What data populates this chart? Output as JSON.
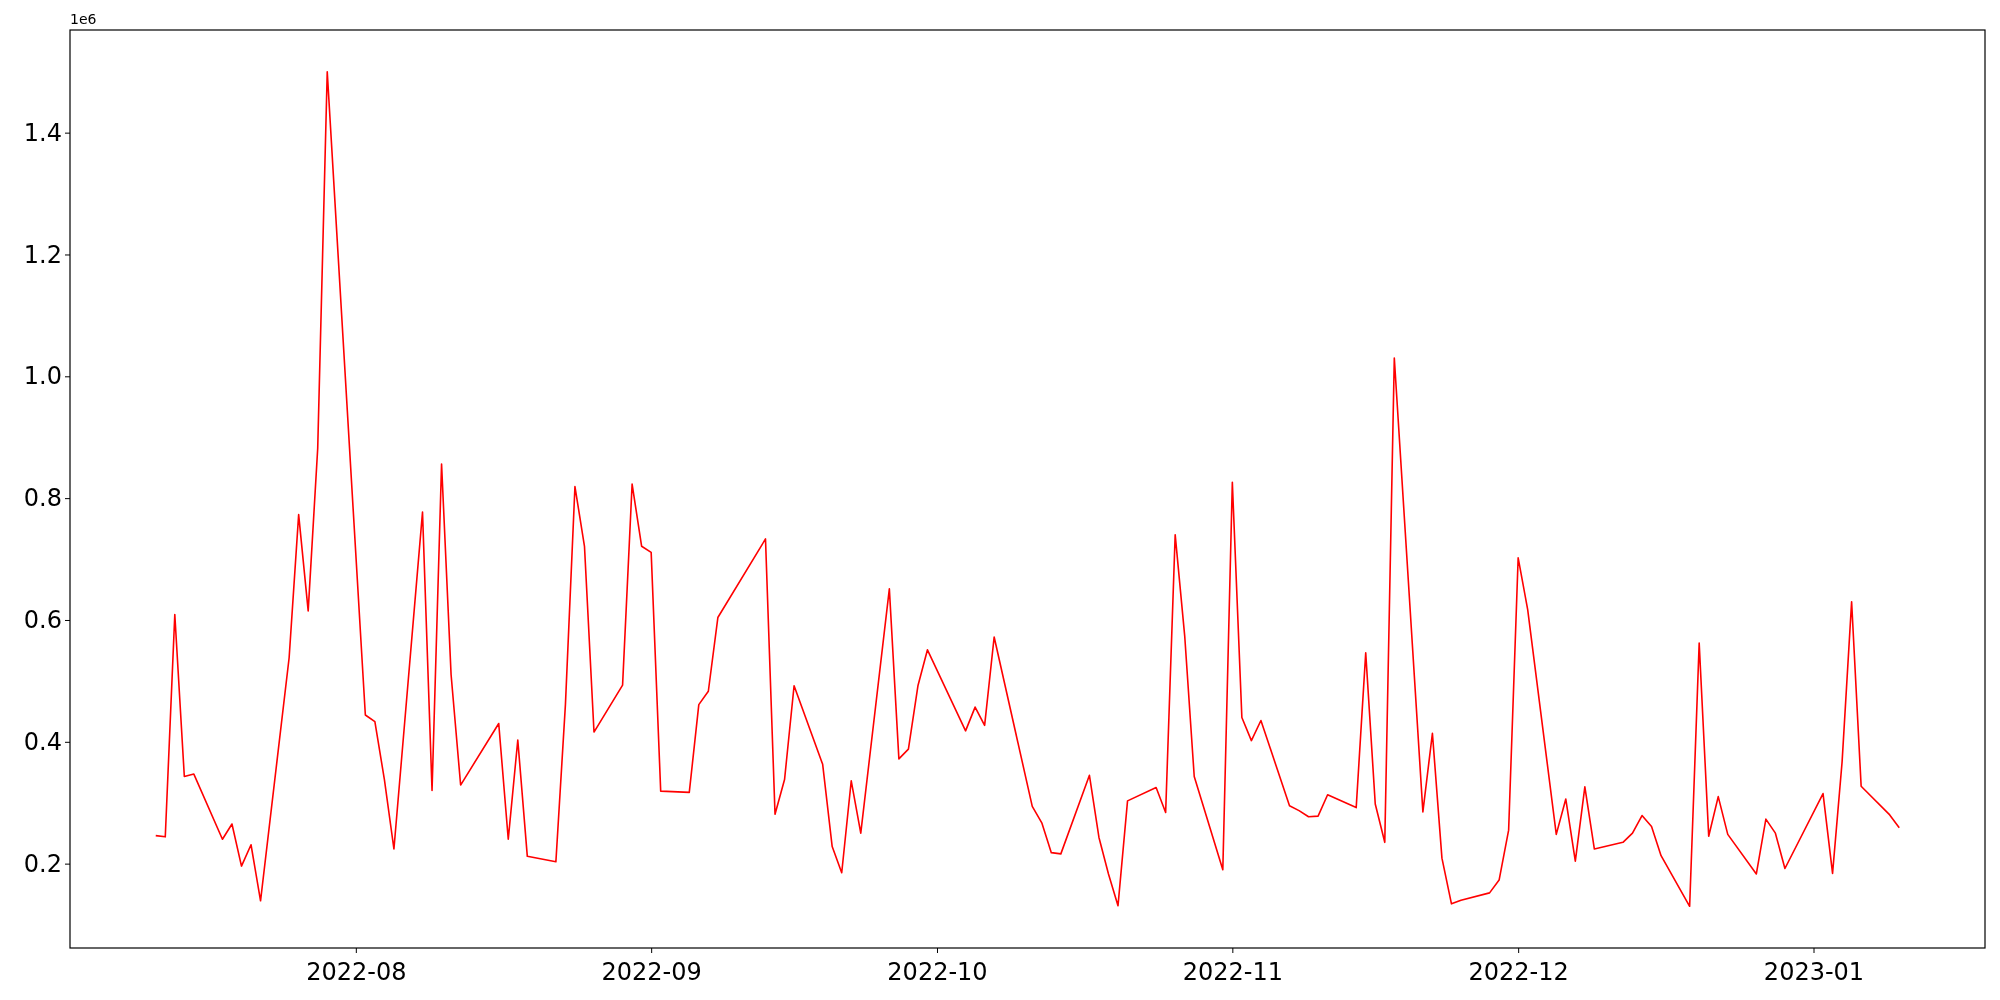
{
  "chart_data": {
    "type": "line",
    "x": [
      "2022-07-11",
      "2022-07-12",
      "2022-07-13",
      "2022-07-14",
      "2022-07-15",
      "2022-07-18",
      "2022-07-19",
      "2022-07-20",
      "2022-07-21",
      "2022-07-22",
      "2022-07-25",
      "2022-07-26",
      "2022-07-27",
      "2022-07-28",
      "2022-07-29",
      "2022-08-02",
      "2022-08-03",
      "2022-08-04",
      "2022-08-05",
      "2022-08-08",
      "2022-08-09",
      "2022-08-10",
      "2022-08-11",
      "2022-08-12",
      "2022-08-16",
      "2022-08-17",
      "2022-08-18",
      "2022-08-19",
      "2022-08-22",
      "2022-08-23",
      "2022-08-24",
      "2022-08-25",
      "2022-08-26",
      "2022-08-29",
      "2022-08-30",
      "2022-08-31",
      "2022-09-01",
      "2022-09-02",
      "2022-09-05",
      "2022-09-06",
      "2022-09-07",
      "2022-09-08",
      "2022-09-13",
      "2022-09-14",
      "2022-09-15",
      "2022-09-16",
      "2022-09-19",
      "2022-09-20",
      "2022-09-21",
      "2022-09-22",
      "2022-09-23",
      "2022-09-26",
      "2022-09-27",
      "2022-09-28",
      "2022-09-29",
      "2022-09-30",
      "2022-10-04",
      "2022-10-05",
      "2022-10-06",
      "2022-10-07",
      "2022-10-11",
      "2022-10-12",
      "2022-10-13",
      "2022-10-14",
      "2022-10-17",
      "2022-10-18",
      "2022-10-19",
      "2022-10-20",
      "2022-10-21",
      "2022-10-24",
      "2022-10-25",
      "2022-10-26",
      "2022-10-27",
      "2022-10-28",
      "2022-10-31",
      "2022-11-01",
      "2022-11-02",
      "2022-11-03",
      "2022-11-04",
      "2022-11-07",
      "2022-11-08",
      "2022-11-09",
      "2022-11-10",
      "2022-11-11",
      "2022-11-14",
      "2022-11-15",
      "2022-11-16",
      "2022-11-17",
      "2022-11-18",
      "2022-11-21",
      "2022-11-22",
      "2022-11-23",
      "2022-11-24",
      "2022-11-25",
      "2022-11-28",
      "2022-11-29",
      "2022-11-30",
      "2022-12-01",
      "2022-12-02",
      "2022-12-05",
      "2022-12-06",
      "2022-12-07",
      "2022-12-08",
      "2022-12-09",
      "2022-12-12",
      "2022-12-13",
      "2022-12-14",
      "2022-12-15",
      "2022-12-16",
      "2022-12-19",
      "2022-12-20",
      "2022-12-21",
      "2022-12-22",
      "2022-12-23",
      "2022-12-26",
      "2022-12-27",
      "2022-12-28",
      "2022-12-29",
      "2023-01-02",
      "2023-01-03",
      "2023-01-04",
      "2023-01-05",
      "2023-01-06",
      "2023-01-09",
      "2023-01-10"
    ],
    "series": [
      {
        "color": "#ff0000",
        "values": [
          0.246,
          0.244,
          0.609,
          0.343,
          0.347,
          0.24,
          0.265,
          0.196,
          0.231,
          0.139,
          0.538,
          0.773,
          0.615,
          0.882,
          1.5,
          0.444,
          0.433,
          0.338,
          0.224,
          0.777,
          0.32,
          0.856,
          0.51,
          0.329,
          0.43,
          0.24,
          0.403,
          0.212,
          0.203,
          0.461,
          0.819,
          0.721,
          0.416,
          0.493,
          0.823,
          0.721,
          0.711,
          0.319,
          0.317,
          0.461,
          0.483,
          0.604,
          0.733,
          0.281,
          0.338,
          0.492,
          0.363,
          0.228,
          0.185,
          0.336,
          0.25,
          0.651,
          0.372,
          0.388,
          0.492,
          0.551,
          0.418,
          0.457,
          0.427,
          0.572,
          0.294,
          0.267,
          0.218,
          0.216,
          0.345,
          0.243,
          0.183,
          0.131,
          0.303,
          0.325,
          0.284,
          0.74,
          0.574,
          0.343,
          0.19,
          0.826,
          0.44,
          0.402,
          0.435,
          0.295,
          0.287,
          0.277,
          0.278,
          0.313,
          0.292,
          0.546,
          0.298,
          0.235,
          1.03,
          0.285,
          0.414,
          0.209,
          0.134,
          0.14,
          0.152,
          0.173,
          0.255,
          0.702,
          0.617,
          0.248,
          0.306,
          0.204,
          0.326,
          0.224,
          0.235,
          0.25,
          0.279,
          0.261,
          0.213,
          0.13,
          0.562,
          0.245,
          0.31,
          0.248,
          0.183,
          0.273,
          0.25,
          0.192,
          0.315,
          0.184,
          0.367,
          0.63,
          0.327,
          0.28,
          0.259
        ]
      }
    ],
    "xlim": [
      "2022-07-02",
      "2023-01-19"
    ],
    "xticks": [
      {
        "value": "2022-08-01",
        "label": "2022-08"
      },
      {
        "value": "2022-09-01",
        "label": "2022-09"
      },
      {
        "value": "2022-10-01",
        "label": "2022-10"
      },
      {
        "value": "2022-11-01",
        "label": "2022-11"
      },
      {
        "value": "2022-12-01",
        "label": "2022-12"
      },
      {
        "value": "2023-01-01",
        "label": "2023-01"
      }
    ],
    "ylim": [
      0.0615,
      1.5685
    ],
    "yticks": [
      0.2,
      0.4,
      0.6,
      0.8,
      {
        "value": 1,
        "label": "1.0"
      },
      1.2,
      1.4
    ],
    "annotations": [
      "1e6"
    ],
    "marker": "none",
    "line_style": "solid"
  }
}
